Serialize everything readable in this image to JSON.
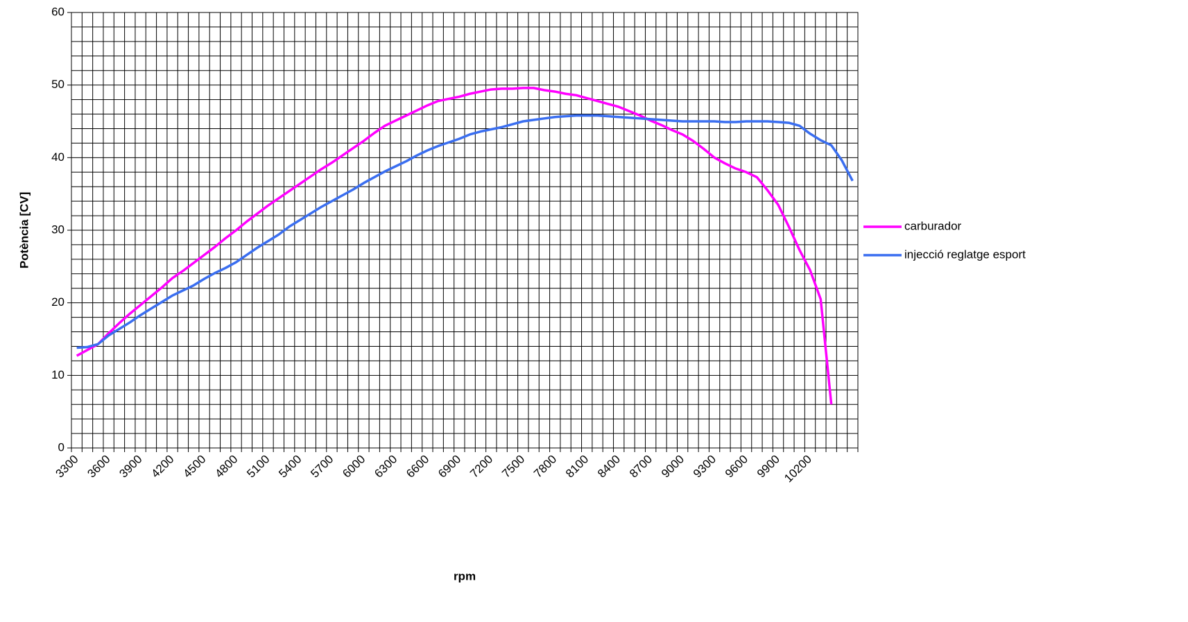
{
  "chart_data": {
    "type": "line",
    "x_label": "rpm",
    "y_label": "Potència [CV]",
    "categories": [
      3300,
      null,
      null,
      3600,
      null,
      null,
      3900,
      null,
      null,
      4200,
      null,
      null,
      4500,
      null,
      null,
      4800,
      null,
      null,
      5100,
      null,
      null,
      5400,
      null,
      null,
      5700,
      null,
      null,
      6000,
      null,
      null,
      6300,
      null,
      null,
      6600,
      null,
      null,
      6900,
      null,
      null,
      7200,
      null,
      null,
      7500,
      null,
      null,
      7800,
      null,
      null,
      8100,
      null,
      null,
      8400,
      null,
      null,
      8700,
      null,
      null,
      9000,
      null,
      null,
      9300,
      null,
      null,
      9600,
      null,
      null,
      9900,
      null,
      null,
      10200,
      null,
      null,
      null,
      null
    ],
    "series": [
      {
        "name": "carburador",
        "color": "#ff00ff",
        "values": [
          12.7,
          13.5,
          14.3,
          15.8,
          17.2,
          18.5,
          19.7,
          20.9,
          22.1,
          23.4,
          24.4,
          25.5,
          26.6,
          27.7,
          28.9,
          30.0,
          31.2,
          32.3,
          33.4,
          34.4,
          35.4,
          36.4,
          37.4,
          38.4,
          39.3,
          40.3,
          41.3,
          42.3,
          43.4,
          44.4,
          45.1,
          45.8,
          46.5,
          47.2,
          47.8,
          48.1,
          48.4,
          48.8,
          49.1,
          49.4,
          49.5,
          49.5,
          49.6,
          49.6,
          49.3,
          49.1,
          48.8,
          48.6,
          48.2,
          47.8,
          47.4,
          47.0,
          46.4,
          45.8,
          45.1,
          44.5,
          43.8,
          43.2,
          42.3,
          41.2,
          40.0,
          39.2,
          38.5,
          38.0,
          37.3,
          35.5,
          33.5,
          30.5,
          27.3,
          24.5,
          20.5,
          6,
          null,
          null
        ]
      },
      {
        "name": "injecció reglatge esport",
        "color": "#3a6ef0",
        "values": [
          13.8,
          13.9,
          14.3,
          15.5,
          16.4,
          17.3,
          18.3,
          19.2,
          20.1,
          21.0,
          21.7,
          22.4,
          23.3,
          24.1,
          24.8,
          25.6,
          26.6,
          27.6,
          28.5,
          29.4,
          30.5,
          31.4,
          32.3,
          33.2,
          34.0,
          34.8,
          35.6,
          36.5,
          37.3,
          38.1,
          38.8,
          39.5,
          40.3,
          41.0,
          41.6,
          42.1,
          42.6,
          43.2,
          43.6,
          43.9,
          44.2,
          44.6,
          45.0,
          45.2,
          45.4,
          45.6,
          45.7,
          45.8,
          45.8,
          45.8,
          45.7,
          45.6,
          45.5,
          45.4,
          45.3,
          45.2,
          45.1,
          45.0,
          45.0,
          45.0,
          45.0,
          44.9,
          44.9,
          45.0,
          45.0,
          45.0,
          44.9,
          44.8,
          44.4,
          43.3,
          42.4,
          41.7,
          39.6,
          36.8
        ]
      }
    ],
    "ylim": [
      0,
      60
    ],
    "yticks": [
      0,
      10,
      20,
      30,
      40,
      50,
      60
    ],
    "minor_yticks": [
      2,
      4,
      6,
      8,
      12,
      14,
      16,
      18,
      22,
      24,
      26,
      28,
      32,
      34,
      36,
      38,
      42,
      44,
      46,
      48,
      52,
      54,
      56,
      58
    ],
    "grid": true,
    "legend": "right"
  }
}
